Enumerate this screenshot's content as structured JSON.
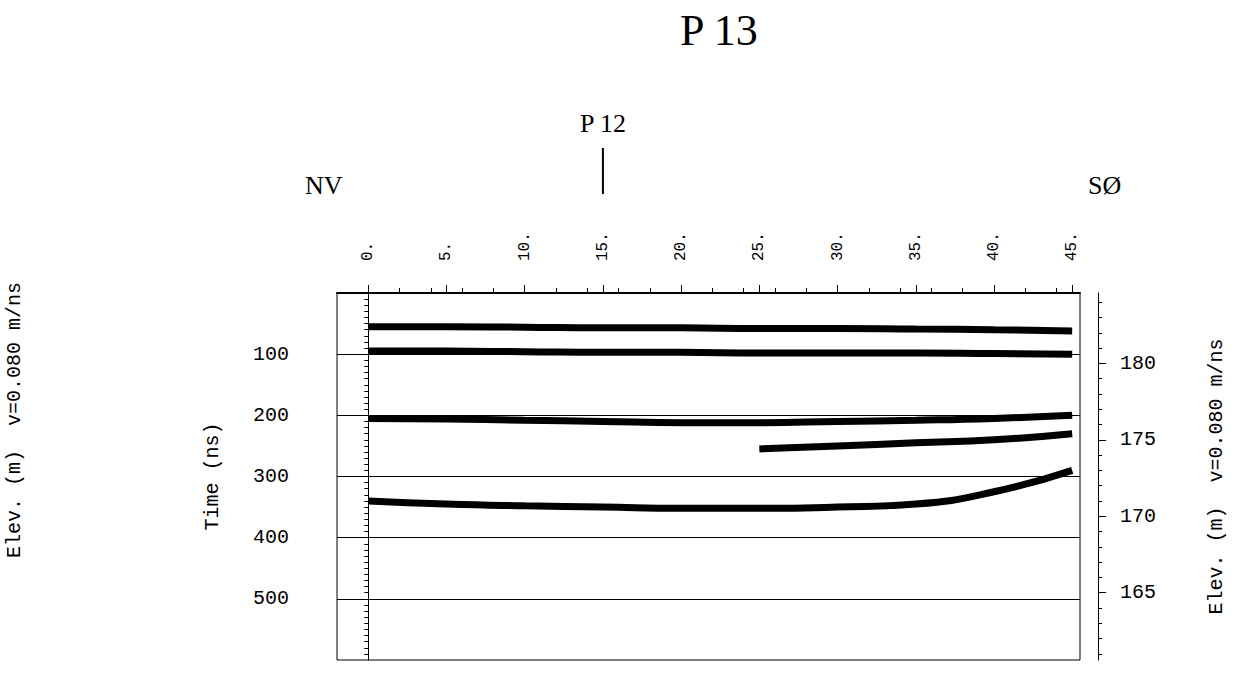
{
  "chart_data": {
    "type": "line",
    "title": "P 13",
    "annotations": [
      {
        "text": "P 12",
        "x": 15
      },
      {
        "text": "NV",
        "position": "left"
      },
      {
        "text": "SØ",
        "position": "right"
      }
    ],
    "y_label": "Time (ns)",
    "y2_label": "Elev. (m)  v=0.080 m/ns",
    "left_note": "Elev. (m)  v=0.080 m/ns",
    "x": [
      0,
      5,
      10,
      15,
      20,
      25,
      30,
      35,
      40,
      45
    ],
    "series": [
      {
        "values": [
          55,
          55,
          56,
          57,
          57,
          58,
          58,
          59,
          60,
          62
        ]
      },
      {
        "values": [
          95,
          95,
          96,
          97,
          97,
          98,
          98,
          98,
          99,
          100
        ]
      },
      {
        "values": [
          205,
          206,
          208,
          210,
          212,
          212,
          210,
          208,
          205,
          200
        ]
      },
      {
        "values": [
          null,
          null,
          null,
          null,
          null,
          255,
          250,
          245,
          240,
          230
        ]
      },
      {
        "values": [
          340,
          345,
          348,
          350,
          352,
          352,
          350,
          345,
          325,
          290
        ]
      }
    ],
    "color": "#000000",
    "xlim": [
      -2,
      45.5
    ],
    "xticks": [
      {
        "value": 0,
        "label": "0."
      },
      {
        "value": 5,
        "label": "5."
      },
      {
        "value": 10,
        "label": "10."
      },
      {
        "value": 15,
        "label": "15."
      },
      {
        "value": 20,
        "label": "20."
      },
      {
        "value": 25,
        "label": "25."
      },
      {
        "value": 30,
        "label": "30."
      },
      {
        "value": 35,
        "label": "35."
      },
      {
        "value": 40,
        "label": "40."
      },
      {
        "value": 45,
        "label": "45."
      }
    ],
    "ylim": [
      600,
      0
    ],
    "yticks": [
      100,
      200,
      300,
      400,
      500
    ],
    "y2lim": [
      160.6,
      184.6
    ],
    "y2ticks": [
      165,
      170,
      175,
      180
    ],
    "grid": true
  }
}
